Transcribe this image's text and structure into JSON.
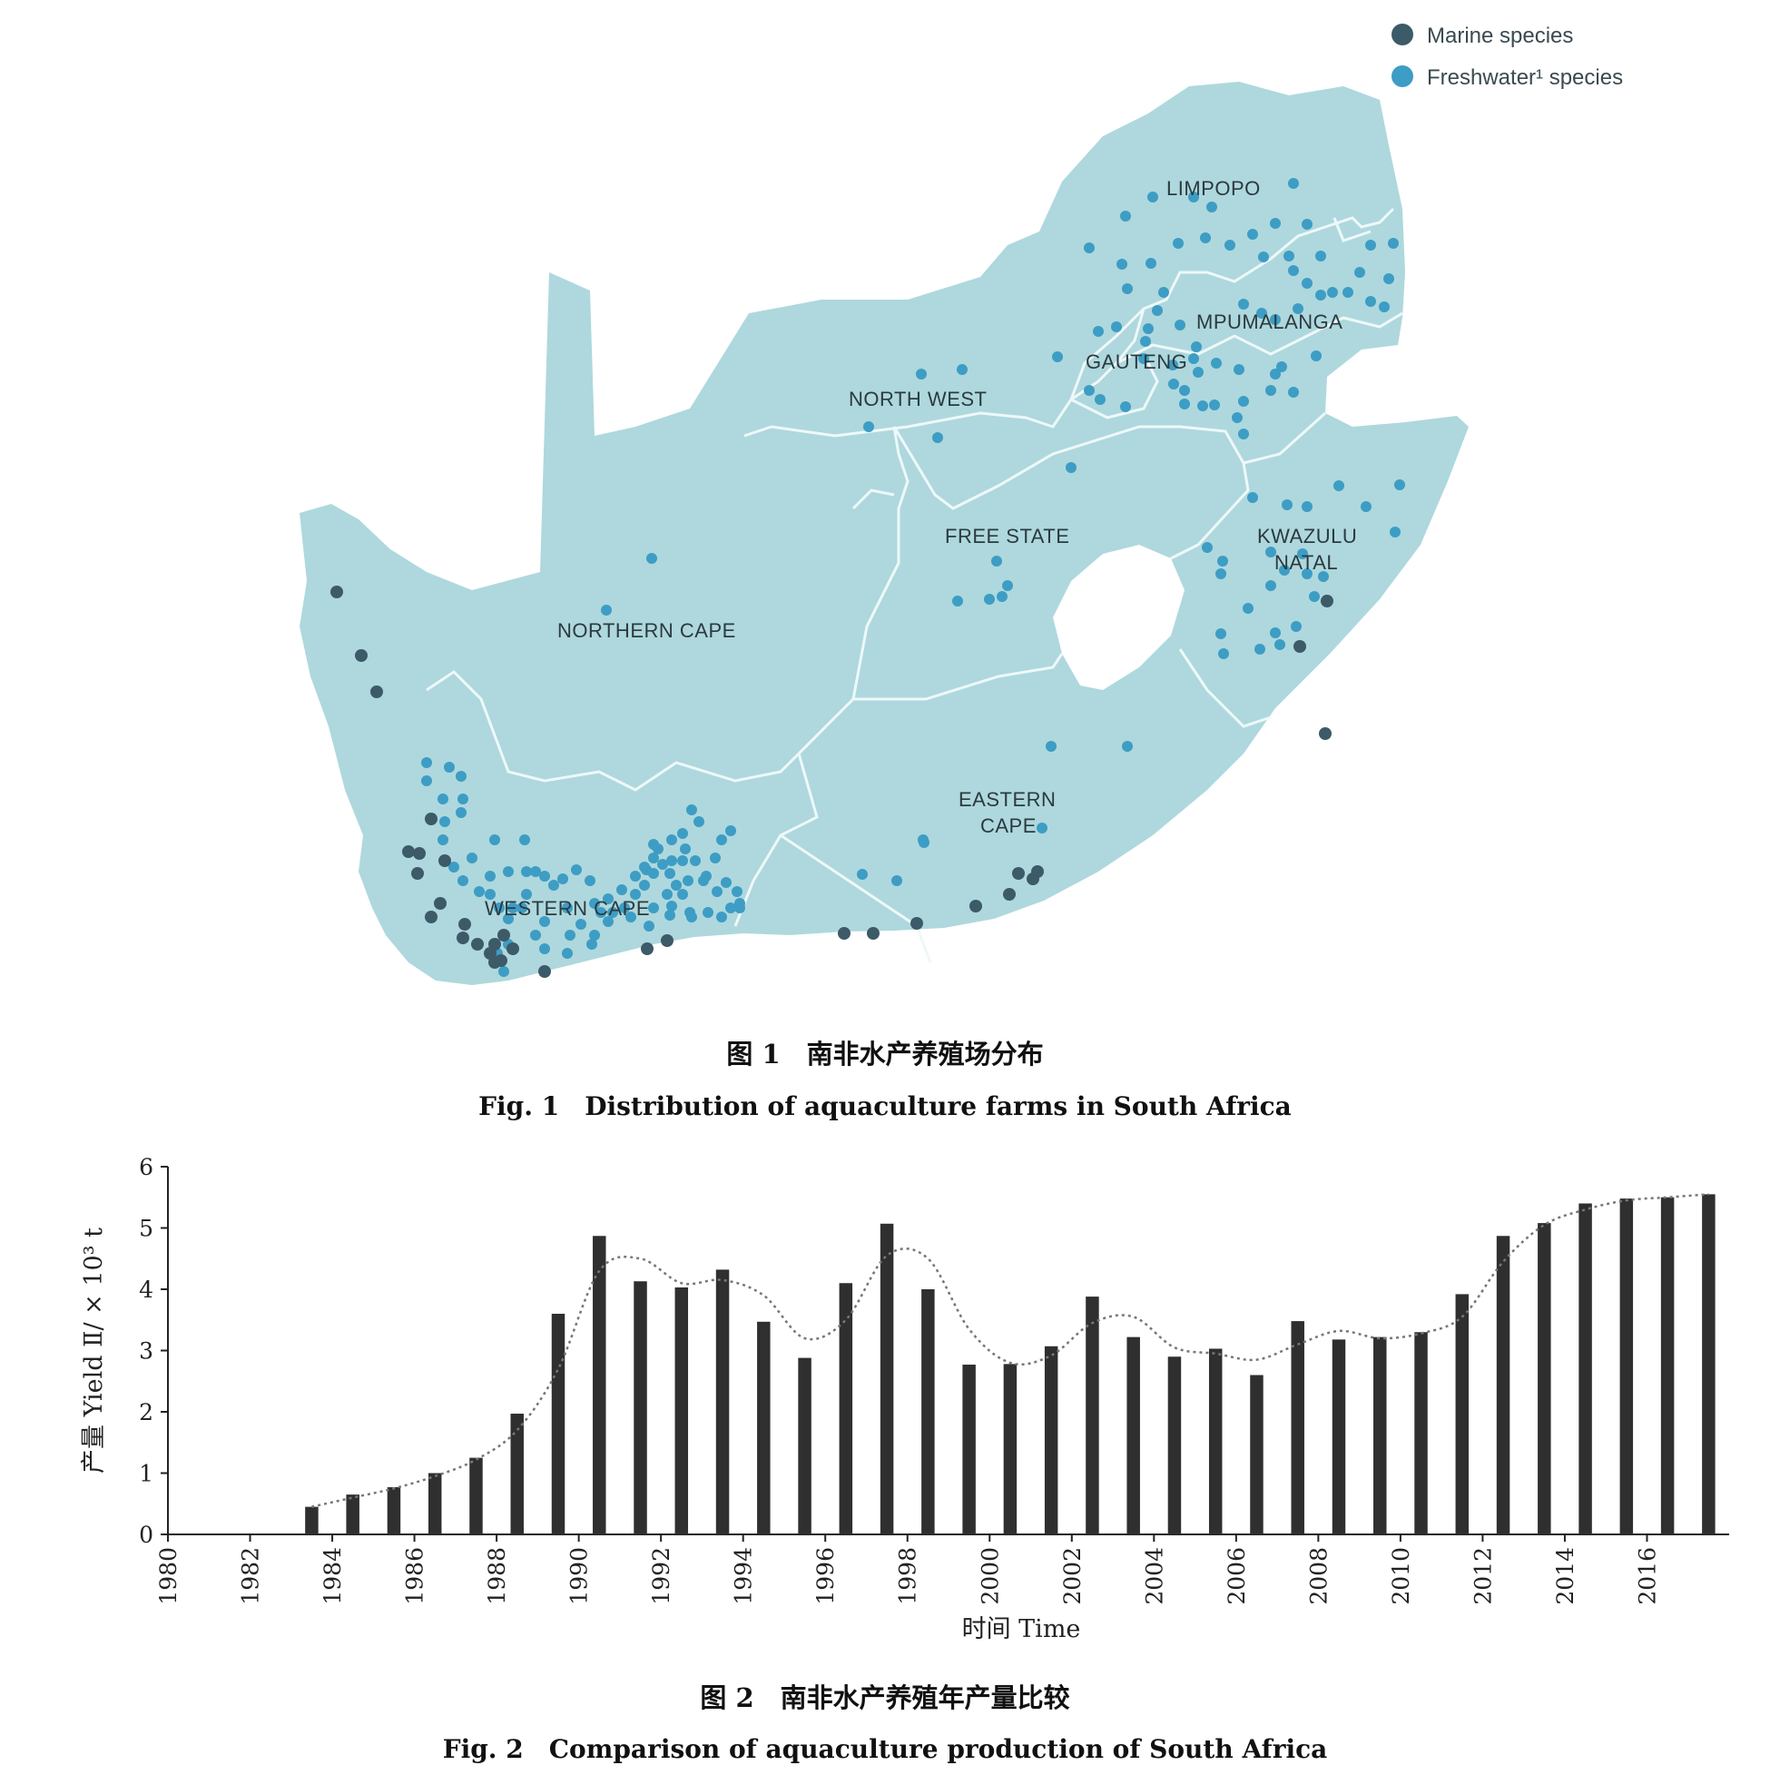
{
  "figure1": {
    "legend": {
      "marine_label": "Marine species",
      "freshwater_label": "Freshwater¹ species",
      "marine_color": "#3d5a68",
      "freshwater_color": "#3d9dc4"
    },
    "regions": {
      "limpopo": "LIMPOPO",
      "mpumalanga": "MPUMALANGA",
      "gauteng": "GAUTENG",
      "north_west": "NORTH WEST",
      "free_state": "FREE STATE",
      "kwazulu_natal_1": "KWAZULU",
      "kwazulu_natal_2": "NATAL",
      "northern_cape": "NORTHERN CAPE",
      "eastern_cape_1": "EASTERN",
      "eastern_cape_2": "CAPE",
      "western_cape": "WESTERN CAPE"
    },
    "map_color": "#aed8dd",
    "caption_cn": "图 1　南非水产养殖场分布",
    "caption_en": "Fig. 1　Distribution of aquaculture farms in South Africa"
  },
  "figure2": {
    "caption_cn": "图 2　南非水产养殖年产量比较",
    "caption_en": "Fig. 2　Comparison of aquaculture production of South Africa",
    "chart_data": {
      "type": "bar",
      "title": "",
      "xlabel": "时间 Time",
      "ylabel": "产量 Yield Ⅱ/ × 10³ t",
      "ylim": [
        0,
        6
      ],
      "yticks": [
        0,
        1,
        2,
        3,
        4,
        5,
        6
      ],
      "xticks": [
        "1980",
        "1982",
        "1984",
        "1986",
        "1988",
        "1990",
        "1992",
        "1994",
        "1996",
        "1998",
        "2000",
        "2002",
        "2004",
        "2006",
        "2008",
        "2010",
        "2012",
        "2014",
        "2016"
      ],
      "categories": [
        "1980",
        "1981",
        "1982",
        "1983",
        "1984",
        "1985",
        "1986",
        "1987",
        "1988",
        "1989",
        "1990",
        "1991",
        "1992",
        "1993",
        "1994",
        "1995",
        "1996",
        "1997",
        "1998",
        "1999",
        "2000",
        "2001",
        "2002",
        "2003",
        "2004",
        "2005",
        "2006",
        "2007",
        "2008",
        "2009",
        "2010",
        "2011",
        "2012",
        "2013",
        "2014",
        "2015",
        "2016",
        "2017"
      ],
      "values": [
        0,
        0,
        0,
        0.45,
        0.65,
        0.77,
        1.0,
        1.25,
        1.97,
        3.6,
        4.87,
        4.13,
        4.03,
        4.32,
        3.47,
        2.88,
        4.1,
        5.07,
        4.0,
        2.77,
        2.78,
        3.07,
        3.88,
        3.22,
        2.9,
        3.03,
        2.6,
        3.48,
        3.18,
        3.22,
        3.3,
        3.92,
        4.87,
        5.08,
        5.4,
        5.48,
        5.5,
        5.55
      ],
      "trend_series": {
        "style": "dotted",
        "x": [
          "1983",
          "1984",
          "1985",
          "1986",
          "1987",
          "1988",
          "1989",
          "1990",
          "1991",
          "1992",
          "1993",
          "1994",
          "1995",
          "1996",
          "1997",
          "1998",
          "1999",
          "2000",
          "2001",
          "2002",
          "2003",
          "2004",
          "2005",
          "2006",
          "2007",
          "2008",
          "2009",
          "2010",
          "2011",
          "2012",
          "2013",
          "2014",
          "2015",
          "2016",
          "2017"
        ],
        "values": [
          0.45,
          0.6,
          0.75,
          0.95,
          1.22,
          1.7,
          2.7,
          4.3,
          4.5,
          4.1,
          4.15,
          3.9,
          3.2,
          3.5,
          4.55,
          4.5,
          3.35,
          2.8,
          2.92,
          3.45,
          3.55,
          3.05,
          2.95,
          2.85,
          3.1,
          3.32,
          3.2,
          3.28,
          3.55,
          4.45,
          5.05,
          5.3,
          5.45,
          5.5,
          5.55
        ]
      },
      "bar_color": "#2f2f2f",
      "trend_color": "#777777"
    }
  }
}
